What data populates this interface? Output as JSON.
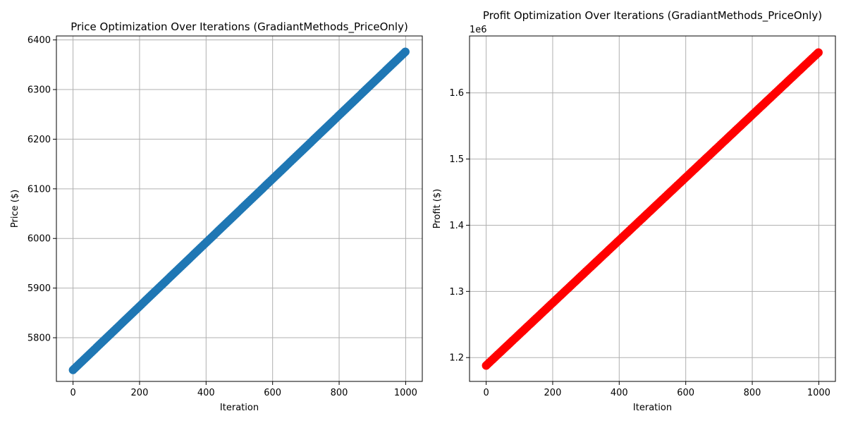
{
  "colors": {
    "price_series": "#1f77b4",
    "profit_series": "#ff0000",
    "grid": "#b0b0b0"
  },
  "chart_data": [
    {
      "type": "scatter",
      "title": "Price Optimization Over Iterations (GradiantMethods_PriceOnly)",
      "xlabel": "Iteration",
      "ylabel": "Price ($)",
      "xlim": [
        -50,
        1050
      ],
      "ylim": [
        5712,
        6408
      ],
      "xticks": [
        0,
        200,
        400,
        600,
        800,
        1000
      ],
      "yticks": [
        5800,
        5900,
        6000,
        6100,
        6200,
        6300,
        6400
      ],
      "grid": true,
      "color": "#1f77b4",
      "series": [
        {
          "x_start": 0,
          "x_end": 999,
          "step": 5,
          "y_start": 5735,
          "y_end": 6376
        }
      ],
      "y_offset_text": ""
    },
    {
      "type": "scatter",
      "title": "Profit Optimization Over Iterations (GradiantMethods_PriceOnly)",
      "xlabel": "Iteration",
      "ylabel": "Profit ($)",
      "xlim": [
        -50,
        1050
      ],
      "ylim": [
        1.164,
        1.686
      ],
      "xticks": [
        0,
        200,
        400,
        600,
        800,
        1000
      ],
      "yticks": [
        1.2,
        1.3,
        1.4,
        1.5,
        1.6
      ],
      "grid": true,
      "color": "#ff0000",
      "series": [
        {
          "x_start": 0,
          "x_end": 999,
          "step": 5,
          "y_start": 1.188,
          "y_end": 1.661
        }
      ],
      "y_offset_text": "1e6"
    }
  ]
}
